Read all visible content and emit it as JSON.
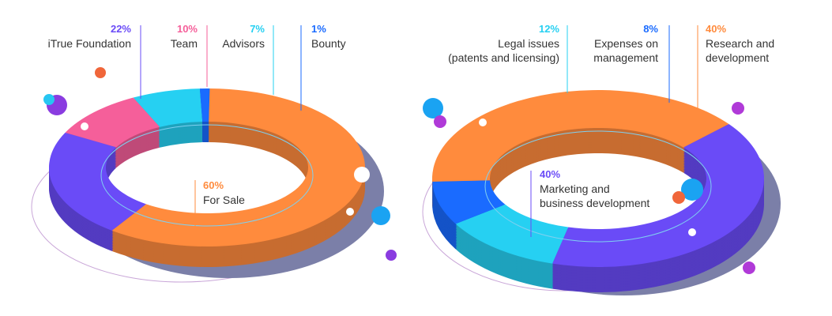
{
  "chart_data": [
    {
      "type": "pie",
      "variant": "3d-donut",
      "slices": [
        {
          "label": "iTrue Foundation",
          "percent": "22%",
          "value": 22,
          "color": "#6a4bf7"
        },
        {
          "label": "Team",
          "percent": "10%",
          "value": 10,
          "color": "#f55f9a"
        },
        {
          "label": "Advisors",
          "percent": "7%",
          "value": 7,
          "color": "#26d0f2"
        },
        {
          "label": "Bounty",
          "percent": "1%",
          "value": 1,
          "color": "#1a6bff"
        },
        {
          "label": "For Sale",
          "percent": "60%",
          "value": 60,
          "color": "#ff8b3d"
        }
      ]
    },
    {
      "type": "pie",
      "variant": "3d-donut",
      "slices": [
        {
          "label": "Legal issues\n(patents and licensing)",
          "percent": "12%",
          "value": 12,
          "color": "#26d0f2"
        },
        {
          "label": "Expenses on\nmanagement",
          "percent": "8%",
          "value": 8,
          "color": "#1a6bff"
        },
        {
          "label": "Research and\ndevelopment",
          "percent": "40%",
          "value": 40,
          "color": "#ff8b3d"
        },
        {
          "label": "Marketing and\nbusiness development",
          "percent": "40%",
          "value": 40,
          "color": "#6a4bf7"
        }
      ]
    }
  ]
}
